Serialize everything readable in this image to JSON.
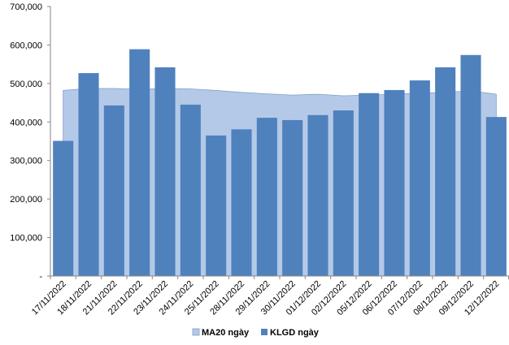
{
  "chart_data": {
    "type": "bar",
    "categories": [
      "17/11/2022",
      "18/11/2022",
      "21/11/2022",
      "22/11/2022",
      "23/11/2022",
      "24/11/2022",
      "25/11/2022",
      "28/11/2022",
      "29/11/2022",
      "30/11/2022",
      "01/12/2022",
      "02/12/2022",
      "05/12/2022",
      "06/12/2022",
      "07/12/2022",
      "08/12/2022",
      "09/12/2022",
      "12/12/2022"
    ],
    "y_tick_labels": [
      "-",
      "100,000",
      "200,000",
      "300,000",
      "400,000",
      "500,000",
      "600,000",
      "700,000"
    ],
    "ylim": [
      0,
      700000
    ],
    "series": [
      {
        "name": "MA20 ngày",
        "type": "area",
        "color": "#B4C9E8",
        "values": [
          482000,
          487000,
          487000,
          485000,
          487000,
          486000,
          482000,
          477000,
          473000,
          470000,
          472000,
          468000,
          470000,
          472000,
          475000,
          477000,
          481000,
          472000
        ]
      },
      {
        "name": "KLGD ngày",
        "type": "bar",
        "color": "#4F81BD",
        "values": [
          351000,
          527000,
          443000,
          589000,
          542000,
          445000,
          365000,
          381000,
          411000,
          405000,
          418000,
          430000,
          475000,
          483000,
          508000,
          542000,
          574000,
          413000
        ]
      }
    ],
    "legend_position": "bottom",
    "grid": false
  }
}
